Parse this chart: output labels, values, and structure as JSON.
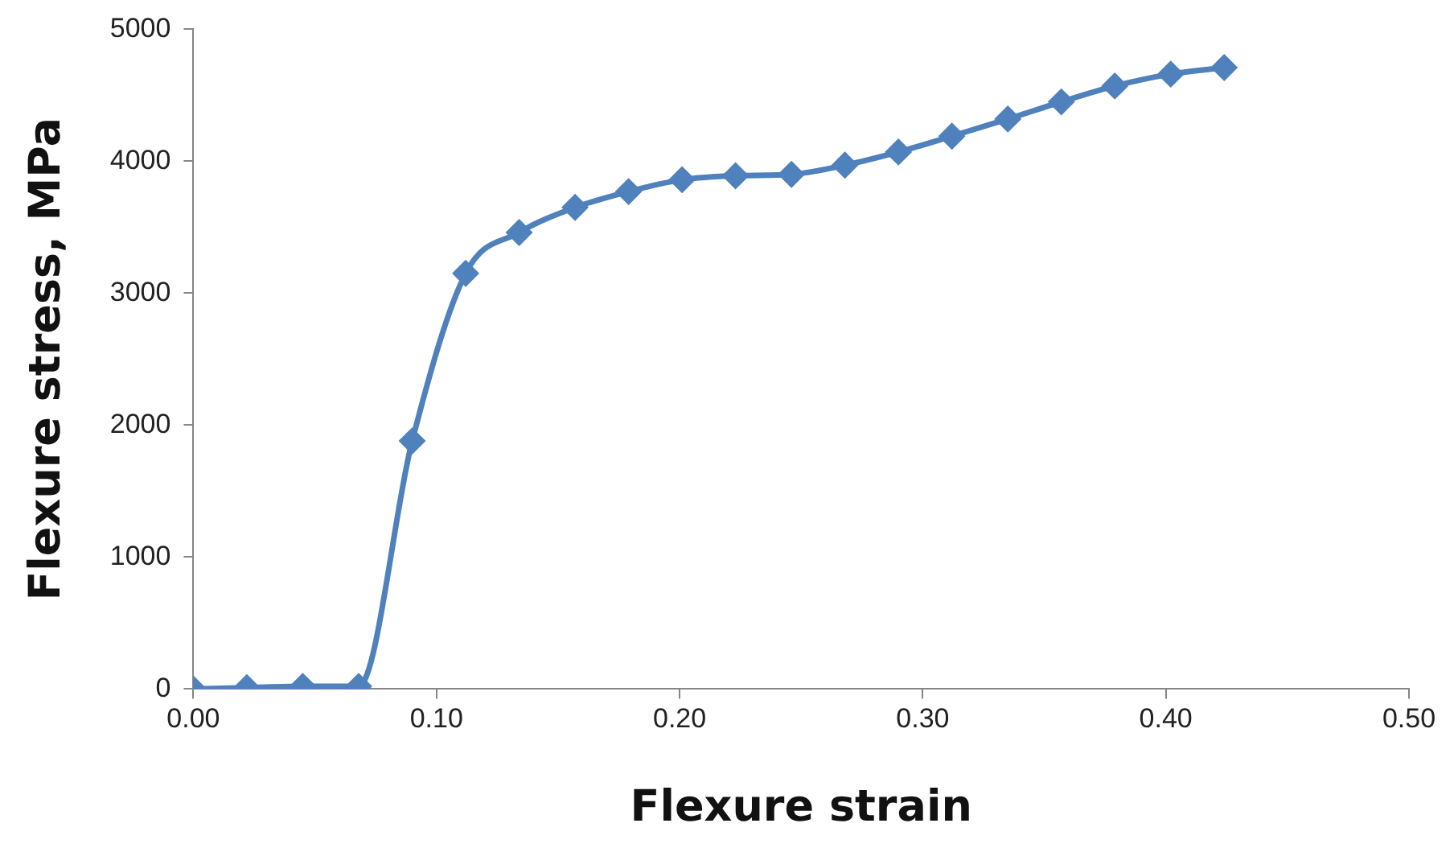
{
  "chart_data": {
    "type": "line",
    "xlabel": "Flexure strain",
    "ylabel": "Flexure stress, MPa",
    "x": [
      0.0,
      0.022,
      0.045,
      0.068,
      0.09,
      0.112,
      0.134,
      0.157,
      0.179,
      0.201,
      0.223,
      0.246,
      0.268,
      0.29,
      0.312,
      0.335,
      0.357,
      0.379,
      0.402,
      0.424
    ],
    "series": [
      {
        "color": "#4f81bd",
        "values": [
          0,
          10,
          20,
          20,
          1880,
          3150,
          3460,
          3650,
          3770,
          3860,
          3890,
          3900,
          3970,
          4070,
          4190,
          4320,
          4450,
          4570,
          4660,
          4710
        ]
      }
    ],
    "xlim": [
      0,
      0.5
    ],
    "xticks": [
      {
        "value": 0,
        "label": "0.00"
      },
      {
        "value": 0.1,
        "label": "0.10"
      },
      {
        "value": 0.2,
        "label": "0.20"
      },
      {
        "value": 0.3,
        "label": "0.30"
      },
      {
        "value": 0.4,
        "label": "0.40"
      },
      {
        "value": 0.5,
        "label": "0.50"
      }
    ],
    "ylim": [
      0,
      5000
    ],
    "yticks": [
      0,
      1000,
      2000,
      3000,
      4000,
      5000
    ],
    "grid": false,
    "legend": false,
    "marker": "diamond",
    "line_style": "solid"
  }
}
